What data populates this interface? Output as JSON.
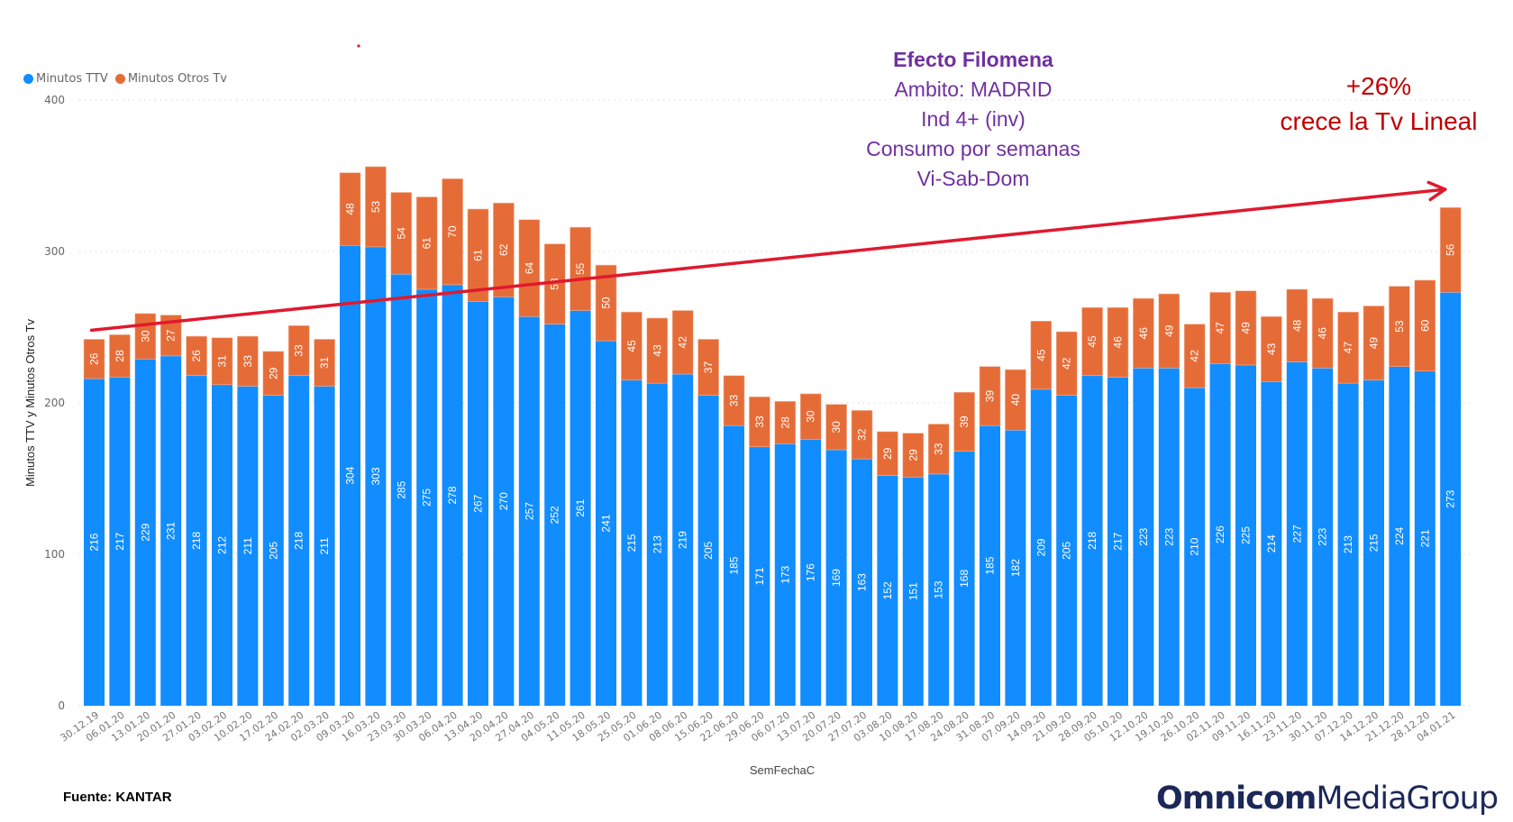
{
  "chart_data": {
    "type": "bar",
    "stacked": true,
    "xlabel": "SemFechaC",
    "ylabel": "Minutos TTV y Minutos Otros Tv",
    "ylim": [
      0,
      400
    ],
    "yticks": [
      0,
      100,
      200,
      300,
      400
    ],
    "grid": true,
    "legend_position": "top-left",
    "categories": [
      "30.12.19",
      "06.01.20",
      "13.01.20",
      "20.01.20",
      "27.01.20",
      "03.02.20",
      "10.02.20",
      "17.02.20",
      "24.02.20",
      "02.03.20",
      "09.03.20",
      "16.03.20",
      "23.03.20",
      "30.03.20",
      "06.04.20",
      "13.04.20",
      "20.04.20",
      "27.04.20",
      "04.05.20",
      "11.05.20",
      "18.05.20",
      "25.05.20",
      "01.06.20",
      "08.06.20",
      "15.06.20",
      "22.06.20",
      "29.06.20",
      "06.07.20",
      "13.07.20",
      "20.07.20",
      "27.07.20",
      "03.08.20",
      "10.08.20",
      "17.08.20",
      "24.08.20",
      "31.08.20",
      "07.09.20",
      "14.09.20",
      "21.09.20",
      "28.09.20",
      "05.10.20",
      "12.10.20",
      "19.10.20",
      "26.10.20",
      "02.11.20",
      "09.11.20",
      "16.11.20",
      "23.11.20",
      "30.11.20",
      "07.12.20",
      "14.12.20",
      "21.12.20",
      "28.12.20",
      "04.01.21"
    ],
    "series": [
      {
        "name": "Minutos TTV",
        "color": "#118dff",
        "values": [
          216,
          217,
          229,
          231,
          218,
          212,
          211,
          205,
          218,
          211,
          304,
          303,
          285,
          275,
          278,
          267,
          270,
          257,
          252,
          261,
          241,
          215,
          213,
          219,
          205,
          185,
          171,
          173,
          176,
          169,
          163,
          152,
          151,
          153,
          168,
          185,
          182,
          209,
          205,
          218,
          217,
          223,
          223,
          210,
          226,
          225,
          214,
          227,
          223,
          213,
          215,
          224,
          221,
          273
        ]
      },
      {
        "name": "Minutos Otros Tv",
        "color": "#e66c37",
        "values": [
          26,
          28,
          30,
          27,
          26,
          31,
          33,
          29,
          33,
          31,
          48,
          53,
          54,
          61,
          70,
          61,
          62,
          64,
          53,
          55,
          50,
          45,
          43,
          42,
          37,
          33,
          33,
          28,
          30,
          30,
          32,
          29,
          29,
          33,
          39,
          39,
          40,
          45,
          42,
          45,
          46,
          46,
          49,
          42,
          47,
          49,
          43,
          48,
          46,
          47,
          49,
          53,
          60,
          56
        ]
      }
    ],
    "trend_arrow": {
      "from_category": "30.12.19",
      "from_value": 248,
      "to_category": "04.01.21",
      "to_value": 341,
      "color": "#e0192e"
    }
  },
  "annotations": {
    "filomena": {
      "title": "Efecto Filomena",
      "lines": [
        "Ambito: MADRID",
        "Ind 4+ (inv)",
        "Consumo por semanas",
        "Vi-Sab-Dom"
      ]
    },
    "growth": {
      "pct": "+26%",
      "text": "crece la Tv Lineal"
    }
  },
  "footer": {
    "source": "Fuente: KANTAR",
    "logo_bold": "Omnicom",
    "logo_light": "MediaGroup"
  }
}
